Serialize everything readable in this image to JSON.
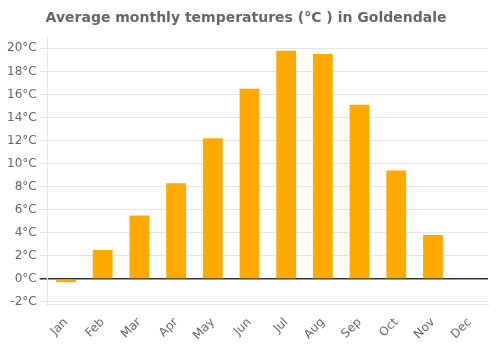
{
  "chart_data": {
    "type": "bar",
    "title": "Average monthly temperatures (°C ) in Goldendale",
    "categories": [
      "Jan",
      "Feb",
      "Mar",
      "Apr",
      "May",
      "Jun",
      "Jul",
      "Aug",
      "Sep",
      "Oct",
      "Nov",
      "Dec"
    ],
    "values": [
      -0.3,
      2.5,
      5.5,
      8.3,
      12.2,
      16.5,
      19.8,
      19.5,
      15.1,
      9.4,
      3.8,
      -0.1
    ],
    "color": "#FFAA00",
    "ylim": [
      -2.2,
      21
    ],
    "yticks": [
      {
        "value": -2,
        "label": "-2°C"
      },
      {
        "value": 0,
        "label": "0°C"
      },
      {
        "value": 2,
        "label": "2°C"
      },
      {
        "value": 4,
        "label": "4°C"
      },
      {
        "value": 6,
        "label": "6°C"
      },
      {
        "value": 8,
        "label": "8°C"
      },
      {
        "value": 10,
        "label": "10°C"
      },
      {
        "value": 12,
        "label": "12°C"
      },
      {
        "value": 14,
        "label": "14°C"
      },
      {
        "value": 16,
        "label": "16°C"
      },
      {
        "value": 18,
        "label": "18°C"
      },
      {
        "value": 20,
        "label": "20°C"
      }
    ],
    "grid": true
  }
}
